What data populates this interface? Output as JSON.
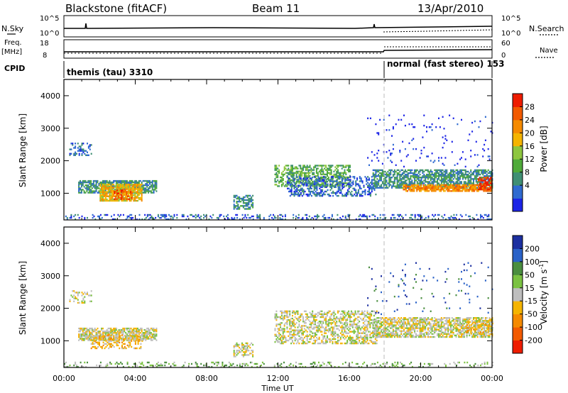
{
  "header": {
    "station": "Blackstone (fitACF)",
    "beam": "Beam 11",
    "date": "13/Apr/2010"
  },
  "top_panels": {
    "nsky_label": "N.Sky",
    "nsky_ticks": [
      "10^5",
      "10^0"
    ],
    "nsearch_label": "N.Search",
    "nsearch_ticks": [
      "10^5",
      "10^0"
    ],
    "freq_label": "Freq.",
    "freq_unit": "[MHz]",
    "freq_ticks": [
      "18",
      "8"
    ],
    "nave_label": "Nave",
    "nave_ticks": [
      "60",
      "0"
    ],
    "cpid_label": "CPID",
    "cpid_segments": [
      {
        "name": "themis (tau) 3310",
        "start_hour": 0,
        "end_hour": 18
      },
      {
        "name": "normal (fast stereo) 153",
        "start_hour": 18,
        "end_hour": 24
      }
    ]
  },
  "axes": {
    "ylabel": "Slant Range [km]",
    "xlabel": "Time UT",
    "x_ticks": [
      "00:00",
      "04:00",
      "08:00",
      "12:00",
      "16:00",
      "20:00",
      "00:00"
    ],
    "y_ticks": [
      "1000",
      "2000",
      "3000",
      "4000"
    ]
  },
  "power_scale": {
    "label": "Power [dB]",
    "ticks": [
      "4",
      "8",
      "12",
      "16",
      "20",
      "24",
      "28"
    ],
    "colors": [
      "#1c24e6",
      "#2f6ad0",
      "#3f8f74",
      "#4faa3a",
      "#8ec63f",
      "#f5b400",
      "#f58a00",
      "#f25a00",
      "#ee1c00"
    ]
  },
  "velocity_scale": {
    "label": "Velocity [m s",
    "label_sup": "-1",
    "label_end": "]",
    "ticks": [
      "200",
      "100",
      "50",
      "15",
      "-15",
      "-50",
      "-100",
      "-200"
    ],
    "colors": [
      "#1c2fa0",
      "#2a62c8",
      "#4a8e3f",
      "#7bc242",
      "#bebebe",
      "#f5b400",
      "#f58a00",
      "#f25a00",
      "#ee1c00"
    ]
  },
  "chart_data": {
    "type": "heatmap",
    "x_range_hours": [
      0,
      24
    ],
    "y_range_km": [
      180,
      4500
    ],
    "marker_hour": 18,
    "power_regions": [
      {
        "t0": 0.3,
        "t1": 1.5,
        "r0": 2150,
        "r1": 2550,
        "level": 1,
        "density": 0.35
      },
      {
        "t0": 0.8,
        "t1": 5.2,
        "r0": 1000,
        "r1": 1400,
        "level": 2,
        "density": 0.75
      },
      {
        "t0": 2.0,
        "t1": 4.4,
        "r0": 750,
        "r1": 1250,
        "level": 5,
        "density": 0.85
      },
      {
        "t0": 2.8,
        "t1": 3.8,
        "r0": 800,
        "r1": 1100,
        "level": 7,
        "density": 0.6
      },
      {
        "t0": 9.5,
        "t1": 10.6,
        "r0": 500,
        "r1": 950,
        "level": 2,
        "density": 0.55
      },
      {
        "t0": 11.8,
        "t1": 16.0,
        "r0": 1200,
        "r1": 1850,
        "level": 3,
        "density": 0.55
      },
      {
        "t0": 12.5,
        "t1": 17.5,
        "r0": 900,
        "r1": 1500,
        "level": 1,
        "density": 0.45
      },
      {
        "t0": 17.3,
        "t1": 24.0,
        "r0": 1150,
        "r1": 1700,
        "level": 2,
        "density": 0.7
      },
      {
        "t0": 19.0,
        "t1": 24.0,
        "r0": 1050,
        "r1": 1250,
        "level": 6,
        "density": 0.8
      },
      {
        "t0": 23.2,
        "t1": 24.0,
        "r0": 1100,
        "r1": 1500,
        "level": 8,
        "density": 0.7
      },
      {
        "t0": 0.0,
        "t1": 24.0,
        "r0": 180,
        "r1": 320,
        "level": 1,
        "density": 0.25
      },
      {
        "t0": 17.0,
        "t1": 24.0,
        "r0": 1800,
        "r1": 3400,
        "level": 0,
        "density": 0.04
      }
    ],
    "velocity_regions": [
      {
        "t0": 0.3,
        "t1": 1.5,
        "r0": 2150,
        "r1": 2550,
        "level": 4,
        "density": 0.3
      },
      {
        "t0": 0.8,
        "t1": 5.2,
        "r0": 1000,
        "r1": 1400,
        "level": 4,
        "density": 0.75
      },
      {
        "t0": 1.5,
        "t1": 4.4,
        "r0": 750,
        "r1": 1200,
        "level": 5,
        "density": 0.45
      },
      {
        "t0": 9.5,
        "t1": 10.6,
        "r0": 500,
        "r1": 950,
        "level": 4,
        "density": 0.5
      },
      {
        "t0": 11.8,
        "t1": 17.5,
        "r0": 900,
        "r1": 1900,
        "level": 4,
        "density": 0.5
      },
      {
        "t0": 17.3,
        "t1": 24.0,
        "r0": 1100,
        "r1": 1700,
        "level": 4,
        "density": 0.65
      },
      {
        "t0": 22.5,
        "t1": 24.0,
        "r0": 1200,
        "r1": 1600,
        "level": 5,
        "density": 0.4
      },
      {
        "t0": 0.0,
        "t1": 24.0,
        "r0": 180,
        "r1": 320,
        "level": 3,
        "density": 0.2
      },
      {
        "t0": 17.0,
        "t1": 24.0,
        "r0": 1800,
        "r1": 3400,
        "level": 1,
        "density": 0.03
      }
    ]
  }
}
